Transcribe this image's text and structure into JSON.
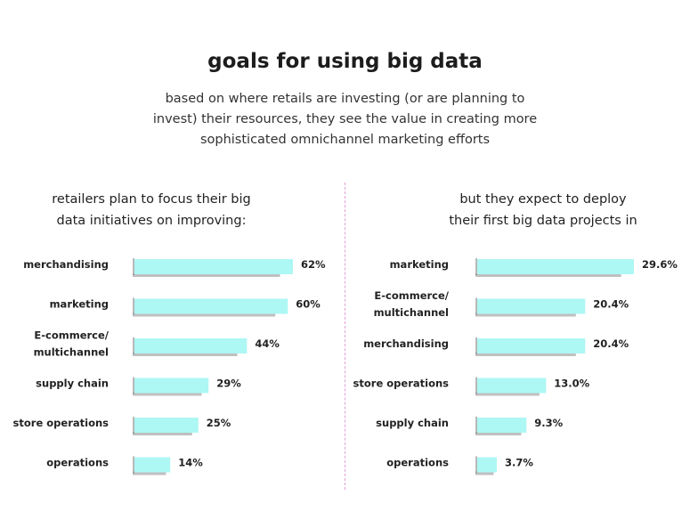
{
  "title": "goals for using big data",
  "subtitle_lines": [
    "based on where retails are investing (or are planning to",
    "invest) their resources, they see the value in creating more",
    "sophisticated omnichannel marketing efforts"
  ],
  "colors": {
    "bar": "#adf7f4",
    "shadow": "#8a8a8a",
    "divider": "#e0a0d6"
  },
  "chart_data": [
    {
      "type": "bar",
      "orientation": "horizontal",
      "title_lines": [
        "retailers plan to focus their big",
        "data initiatives on improving:"
      ],
      "categories": [
        [
          "merchandising"
        ],
        [
          "marketing"
        ],
        [
          "E-commerce/",
          "multichannel"
        ],
        [
          "supply chain"
        ],
        [
          "store operations"
        ],
        [
          "operations"
        ]
      ],
      "values": [
        62,
        60,
        44,
        29,
        25,
        14
      ],
      "value_labels": [
        "62%",
        "60%",
        "44%",
        "29%",
        "25%",
        "14%"
      ],
      "unit": "%"
    },
    {
      "type": "bar",
      "orientation": "horizontal",
      "title_lines": [
        "but they expect to deploy",
        "their first big data projects in"
      ],
      "categories": [
        [
          "marketing"
        ],
        [
          "E-commerce/",
          "multichannel"
        ],
        [
          "merchandising"
        ],
        [
          "store operations"
        ],
        [
          "supply chain"
        ],
        [
          "operations"
        ]
      ],
      "values": [
        29.6,
        20.4,
        20.4,
        13.0,
        9.3,
        3.7
      ],
      "value_labels": [
        "29.6%",
        "20.4%",
        "20.4%",
        "13.0%",
        "9.3%",
        "3.7%"
      ],
      "unit": "%"
    }
  ]
}
